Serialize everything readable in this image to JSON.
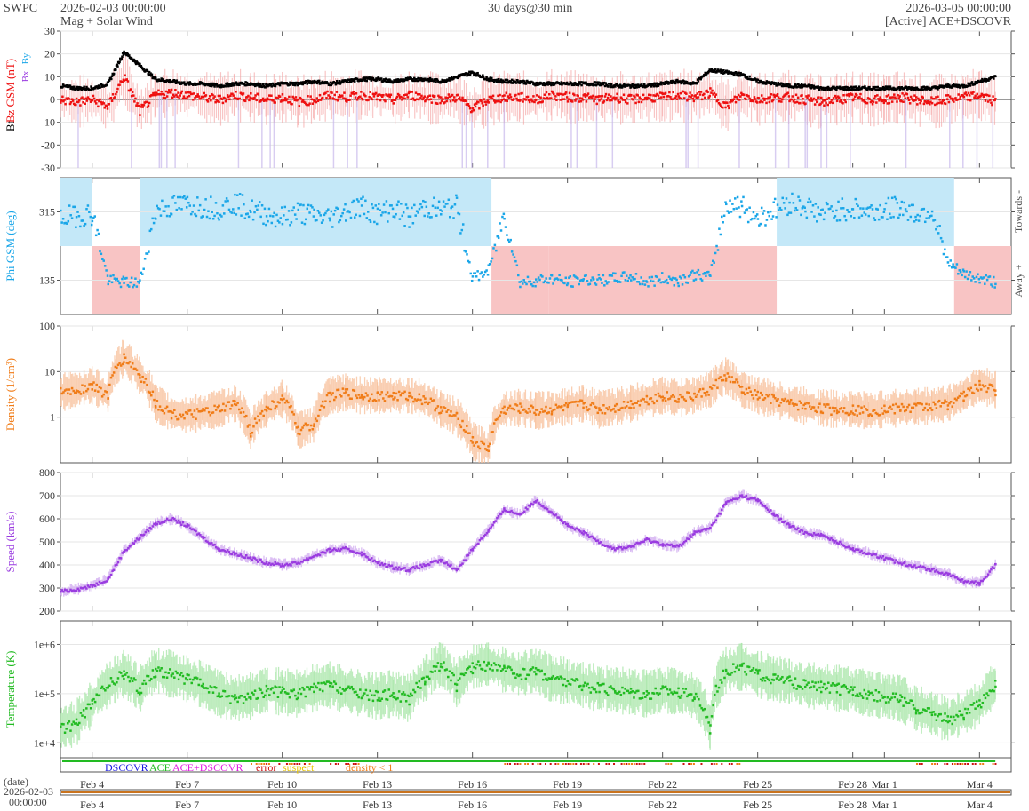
{
  "header": {
    "source": "SWPC",
    "start_time": "2026-02-03 00:00:00",
    "product": "Mag + Solar Wind",
    "span": "30 days@30 min",
    "end_time": "2026-03-05 00:00:00",
    "status": "[Active] ACE+DSCOVR"
  },
  "footer": {
    "date_label": "(date)",
    "date_value": "2026-02-03",
    "time_value": "00:00:00"
  },
  "colors": {
    "bt": "#000000",
    "bz": "#ee1111",
    "bz_band": "#f5a0a0",
    "by_band": "#c8b8ec",
    "phi": "#1aa6e8",
    "toward": "#c4e8f8",
    "away": "#f8c4c4",
    "density": "#f07c18",
    "density_band": "#f8c09a",
    "speed": "#9a3ce0",
    "speed_band": "#cfa8f0",
    "temp": "#22bb22",
    "temp_band": "#a8e6a8",
    "dscovr": "#1a1ae0",
    "ace": "#22bb22",
    "ace_dscovr": "#e020e0",
    "error": "#cc1111",
    "suspect": "#e8c400",
    "density_flag": "#f07c18"
  },
  "chart_data": [
    {
      "type": "line",
      "id": "mag",
      "ylabels": [
        {
          "text": "Bt",
          "color": "#000000"
        },
        {
          "text": "Bz GSM (nT)",
          "color": "#ee1111"
        }
      ],
      "legend_labels": [
        "Bx",
        "By"
      ],
      "ylim": [
        -30,
        30
      ],
      "yticks": [
        -30,
        -20,
        -10,
        0,
        10,
        20,
        30
      ],
      "x_days": [
        0,
        0.5,
        1,
        1.5,
        2,
        2.5,
        3,
        3.5,
        4,
        4.5,
        5,
        5.5,
        6,
        6.5,
        7,
        7.5,
        8,
        8.5,
        9,
        9.5,
        10,
        10.5,
        11,
        11.5,
        12,
        12.5,
        13,
        13.5,
        14,
        14.5,
        15,
        15.5,
        16,
        16.5,
        17,
        17.5,
        18,
        18.5,
        19,
        19.5,
        20,
        20.5,
        21,
        21.5,
        22,
        22.5,
        23,
        23.5,
        24,
        24.5,
        25,
        25.5,
        26,
        26.5,
        27,
        27.5,
        28,
        28.5,
        29,
        29.5
      ],
      "series": [
        {
          "name": "Bt",
          "values": [
            6,
            5,
            5,
            7,
            21,
            15,
            9,
            8,
            7,
            7,
            6,
            7,
            7,
            6,
            7,
            7,
            8,
            7,
            8,
            9,
            9,
            8,
            9,
            9,
            8,
            10,
            12,
            9,
            8,
            8,
            7,
            7,
            7,
            7,
            7,
            6,
            6,
            6,
            7,
            8,
            7,
            13,
            12,
            11,
            8,
            7,
            6,
            6,
            5,
            5,
            5,
            5,
            5,
            5,
            5,
            5,
            6,
            6,
            8,
            10
          ]
        },
        {
          "name": "Bz",
          "values": [
            0,
            -1,
            0,
            -3,
            10,
            -5,
            2,
            3,
            2,
            1,
            0,
            2,
            1,
            0,
            1,
            -1,
            0,
            2,
            1,
            2,
            1,
            0,
            2,
            1,
            0,
            1,
            -4,
            0,
            1,
            1,
            0,
            2,
            1,
            1,
            0,
            1,
            0,
            1,
            1,
            2,
            1,
            3,
            -3,
            2,
            0,
            1,
            1,
            0,
            -1,
            0,
            1,
            0,
            0,
            1,
            0,
            -1,
            0,
            1,
            2,
            -1
          ]
        }
      ]
    },
    {
      "type": "scatter",
      "id": "phi",
      "ylabel": "Phi GSM (deg)",
      "right_labels": [
        "Towards -",
        "Away +"
      ],
      "ylim": [
        45,
        405
      ],
      "yticks": [
        135,
        315
      ],
      "x_days": [
        0,
        0.5,
        1,
        1.5,
        2,
        2.5,
        3,
        3.5,
        4,
        4.5,
        5,
        5.5,
        6,
        6.5,
        7,
        7.5,
        8,
        8.5,
        9,
        9.5,
        10,
        10.5,
        11,
        11.5,
        12,
        12.5,
        13,
        13.5,
        14,
        14.5,
        15,
        15.5,
        16,
        16.5,
        17,
        17.5,
        18,
        18.5,
        19,
        19.5,
        20,
        20.5,
        21,
        21.5,
        22,
        22.5,
        23,
        23.5,
        24,
        24.5,
        25,
        25.5,
        26,
        26.5,
        27,
        27.5,
        28,
        28.5,
        29,
        29.5
      ],
      "values": [
        300,
        305,
        310,
        135,
        130,
        128,
        320,
        330,
        335,
        330,
        325,
        340,
        320,
        310,
        300,
        315,
        305,
        300,
        320,
        330,
        310,
        325,
        300,
        330,
        320,
        330,
        140,
        160,
        310,
        130,
        135,
        140,
        130,
        138,
        135,
        140,
        145,
        130,
        140,
        135,
        150,
        145,
        340,
        330,
        300,
        320,
        340,
        330,
        310,
        320,
        325,
        315,
        320,
        330,
        310,
        320,
        180,
        150,
        140,
        130
      ],
      "sectors": [
        {
          "start": 0,
          "end": 1,
          "dir": "toward"
        },
        {
          "start": 1,
          "end": 2.5,
          "dir": "away"
        },
        {
          "start": 2.5,
          "end": 13.6,
          "dir": "toward"
        },
        {
          "start": 13.6,
          "end": 15.4,
          "dir": "away"
        },
        {
          "start": 15.4,
          "end": 22.6,
          "dir": "away"
        },
        {
          "start": 22.6,
          "end": 28.2,
          "dir": "toward"
        },
        {
          "start": 28.2,
          "end": 30,
          "dir": "away"
        }
      ]
    },
    {
      "type": "line",
      "id": "density",
      "ylabel": "Density (1/cm³)",
      "scale": "log",
      "ylim": [
        0.1,
        100
      ],
      "yticks": [
        1,
        10,
        100
      ],
      "ytick_labels": [
        "1",
        "10",
        "100"
      ],
      "x_days": [
        0,
        0.5,
        1,
        1.5,
        2,
        2.5,
        3,
        3.5,
        4,
        4.5,
        5,
        5.5,
        6,
        6.5,
        7,
        7.5,
        8,
        8.5,
        9,
        9.5,
        10,
        10.5,
        11,
        11.5,
        12,
        12.5,
        13,
        13.5,
        14,
        14.5,
        15,
        15.5,
        16,
        16.5,
        17,
        17.5,
        18,
        18.5,
        19,
        19.5,
        20,
        20.5,
        21,
        21.5,
        22,
        22.5,
        23,
        23.5,
        24,
        24.5,
        25,
        25.5,
        26,
        26.5,
        27,
        27.5,
        28,
        28.5,
        29,
        29.5
      ],
      "values": [
        3.5,
        4,
        5,
        3,
        20,
        8,
        2,
        1.2,
        1.1,
        1.3,
        1.5,
        2,
        0.5,
        1.5,
        2.5,
        0.5,
        0.7,
        3,
        3.5,
        3,
        3,
        3,
        3,
        2.5,
        1.5,
        1,
        0.3,
        0.2,
        1.5,
        1.6,
        1.4,
        1.5,
        1.7,
        2,
        1.5,
        1.7,
        2,
        2.5,
        3,
        2.7,
        3,
        4,
        8,
        4,
        3,
        2.5,
        2,
        1.8,
        1.6,
        1.5,
        1.5,
        1.4,
        1.5,
        1.6,
        1.7,
        1.8,
        2,
        3,
        5,
        4
      ]
    },
    {
      "type": "line",
      "id": "speed",
      "ylabel": "Speed (km/s)",
      "ylim": [
        200,
        800
      ],
      "yticks": [
        200,
        300,
        400,
        500,
        600,
        700,
        800
      ],
      "x_days": [
        0,
        0.5,
        1,
        1.5,
        2,
        2.5,
        3,
        3.5,
        4,
        4.5,
        5,
        5.5,
        6,
        6.5,
        7,
        7.5,
        8,
        8.5,
        9,
        9.5,
        10,
        10.5,
        11,
        11.5,
        12,
        12.5,
        13,
        13.5,
        14,
        14.5,
        15,
        15.5,
        16,
        16.5,
        17,
        17.5,
        18,
        18.5,
        19,
        19.5,
        20,
        20.5,
        21,
        21.5,
        22,
        22.5,
        23,
        23.5,
        24,
        24.5,
        25,
        25.5,
        26,
        26.5,
        27,
        27.5,
        28,
        28.5,
        29,
        29.5
      ],
      "values": [
        285,
        295,
        310,
        340,
        460,
        520,
        580,
        600,
        570,
        520,
        470,
        450,
        430,
        410,
        400,
        410,
        440,
        465,
        470,
        450,
        410,
        390,
        380,
        400,
        420,
        380,
        470,
        550,
        640,
        620,
        680,
        630,
        570,
        540,
        500,
        470,
        480,
        510,
        490,
        480,
        540,
        560,
        670,
        700,
        680,
        620,
        570,
        540,
        530,
        500,
        470,
        450,
        430,
        410,
        395,
        380,
        360,
        330,
        320,
        400
      ]
    },
    {
      "type": "line",
      "id": "temperature",
      "ylabel": "Temperature (K)",
      "scale": "log",
      "ylim": [
        5000,
        3000000
      ],
      "yticks": [
        10000,
        100000,
        1000000
      ],
      "ytick_labels": [
        "1e+4",
        "1e+5",
        "1e+6"
      ],
      "x_days": [
        0,
        0.5,
        1,
        1.5,
        2,
        2.5,
        3,
        3.5,
        4,
        4.5,
        5,
        5.5,
        6,
        6.5,
        7,
        7.5,
        8,
        8.5,
        9,
        9.5,
        10,
        10.5,
        11,
        11.5,
        12,
        12.5,
        13,
        13.5,
        14,
        14.5,
        15,
        15.5,
        16,
        16.5,
        17,
        17.5,
        18,
        18.5,
        19,
        19.5,
        20,
        20.5,
        21,
        21.5,
        22,
        22.5,
        23,
        23.5,
        24,
        24.5,
        25,
        25.5,
        26,
        26.5,
        27,
        27.5,
        28,
        28.5,
        29,
        29.5
      ],
      "values": [
        20000,
        25000,
        60000,
        150000,
        250000,
        120000,
        300000,
        250000,
        200000,
        150000,
        100000,
        80000,
        90000,
        120000,
        110000,
        100000,
        130000,
        150000,
        120000,
        100000,
        90000,
        100000,
        80000,
        200000,
        400000,
        150000,
        350000,
        400000,
        300000,
        250000,
        300000,
        200000,
        180000,
        150000,
        130000,
        120000,
        110000,
        100000,
        120000,
        110000,
        90000,
        20000,
        300000,
        350000,
        250000,
        200000,
        180000,
        150000,
        140000,
        130000,
        120000,
        100000,
        90000,
        80000,
        50000,
        40000,
        30000,
        40000,
        60000,
        150000
      ]
    }
  ],
  "source_bar": {
    "labels": {
      "dscovr": "DSCOVR",
      "ace": "ACE",
      "ace_dscovr": "ACE+DSCOVR",
      "error": "error",
      "suspect": "suspect",
      "density": "density < 1"
    },
    "flag_spans": [
      {
        "start": 6,
        "end": 8
      },
      {
        "start": 8.5,
        "end": 9.5
      },
      {
        "start": 14,
        "end": 16
      },
      {
        "start": 16,
        "end": 18.5
      },
      {
        "start": 19,
        "end": 21.5
      },
      {
        "start": 27,
        "end": 29.5
      }
    ]
  },
  "x_axis": {
    "tick_labels": [
      "Feb 4",
      "Feb 7",
      "Feb 10",
      "Feb 13",
      "Feb 16",
      "Feb 19",
      "Feb 22",
      "Feb 25",
      "Feb 28",
      "Mar 1",
      "Mar 4"
    ],
    "tick_days": [
      1,
      4,
      7,
      10,
      13,
      16,
      19,
      22,
      25,
      26,
      29
    ]
  }
}
